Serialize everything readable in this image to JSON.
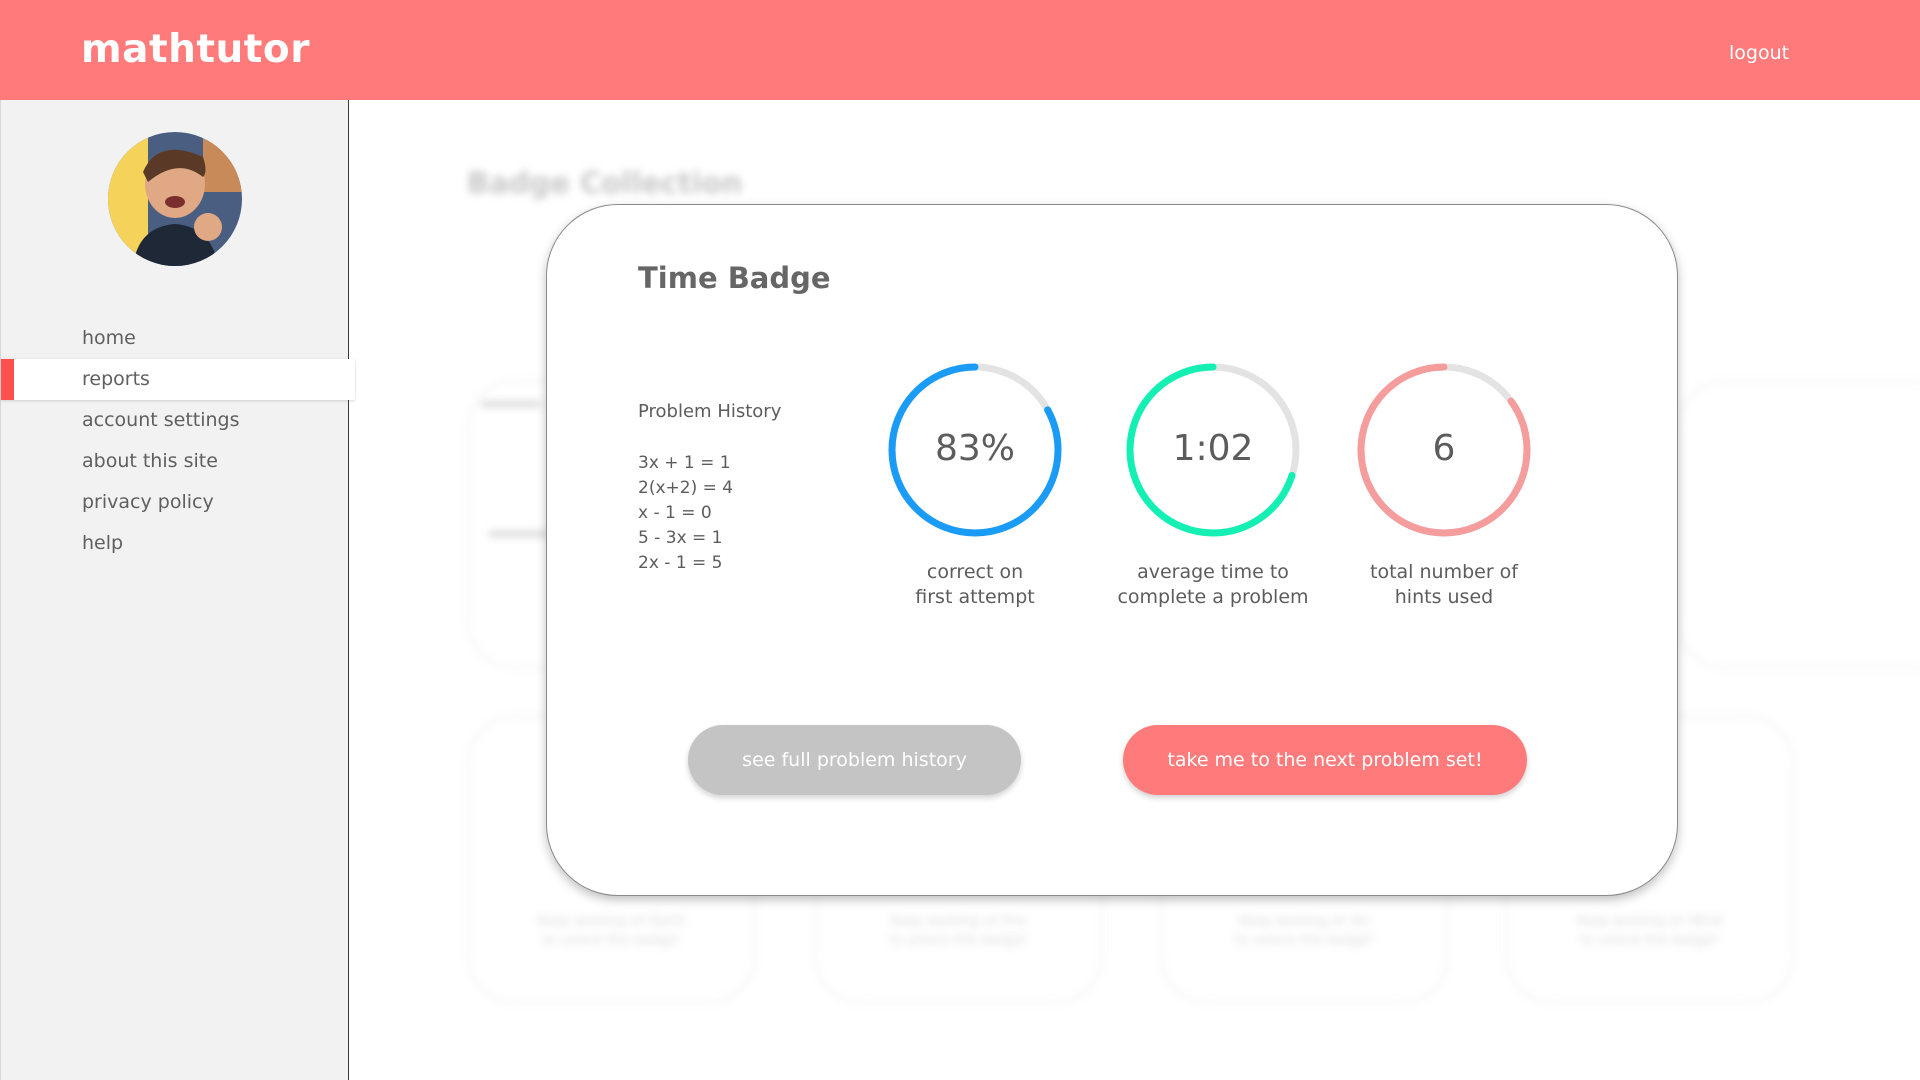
{
  "app": {
    "logo": "mathtutor",
    "logout_label": "logout"
  },
  "colors": {
    "header": "#ff7a7a",
    "accent": "#ff4f4f",
    "ring_blue": "#1a9bf5",
    "ring_green": "#14f0b4",
    "ring_pink": "#f59c9c",
    "ring_track": "#e3e3e3"
  },
  "sidebar": {
    "items": [
      {
        "label": "home",
        "active": false
      },
      {
        "label": "reports",
        "active": true
      },
      {
        "label": "account settings",
        "active": false
      },
      {
        "label": "about this site",
        "active": false
      },
      {
        "label": "privacy policy",
        "active": false
      },
      {
        "label": "help",
        "active": false
      }
    ]
  },
  "background": {
    "title": "Badge Collection",
    "cards": [
      {
        "text_line1": "Keep working on Earth",
        "text_line2": "to unlock this badge!"
      },
      {
        "text_line1": "Keep working on Fire",
        "text_line2": "to unlock this badge!"
      },
      {
        "text_line1": "Keep working on Air",
        "text_line2": "to unlock this badge!"
      },
      {
        "text_line1": "Keep working on Wind",
        "text_line2": "to unlock this badge!"
      }
    ]
  },
  "modal": {
    "title": "Time Badge",
    "history_title": "Problem History",
    "history": [
      "3x + 1 = 1",
      "2(x+2) = 4",
      "x - 1 = 0",
      "5 - 3x = 1",
      "2x - 1 = 5"
    ],
    "stats": [
      {
        "value": "83%",
        "label_line1": "correct on",
        "label_line2": "first attempt",
        "progress": 0.83,
        "color_key": "ring_blue"
      },
      {
        "value": "1:02",
        "label_line1": "average time to",
        "label_line2": "complete a problem",
        "progress": 0.7,
        "color_key": "ring_green"
      },
      {
        "value": "6",
        "label_line1": "total number of",
        "label_line2": "hints used",
        "progress": 0.85,
        "color_key": "ring_pink"
      }
    ],
    "buttons": {
      "history": "see full problem history",
      "next": "take me to the next problem set!"
    }
  }
}
